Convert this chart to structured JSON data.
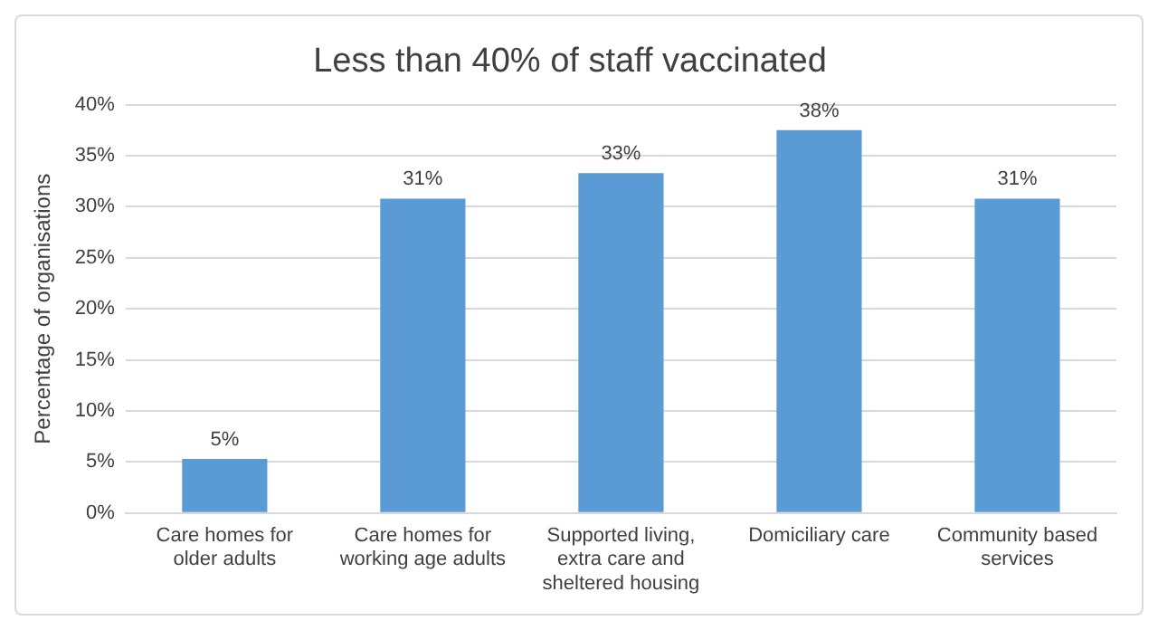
{
  "chart_data": {
    "type": "bar",
    "title": "Less than 40% of staff vaccinated",
    "ylabel": "Percentage of organisations",
    "categories": [
      "Care homes for older adults",
      "Care homes for working age adults",
      "Supported living, extra care and sheltered housing",
      "Domiciliary care",
      "Community based services"
    ],
    "values": [
      5.3,
      30.8,
      33.3,
      37.5,
      30.8
    ],
    "value_labels": [
      "5%",
      "31%",
      "33%",
      "38%",
      "31%"
    ],
    "color": "#5b9bd5",
    "ylim": [
      0,
      40
    ],
    "yticks": [
      {
        "value": 0,
        "label": "0%"
      },
      {
        "value": 5,
        "label": "5%"
      },
      {
        "value": 10,
        "label": "10%"
      },
      {
        "value": 15,
        "label": "15%"
      },
      {
        "value": 20,
        "label": "20%"
      },
      {
        "value": 25,
        "label": "25%"
      },
      {
        "value": 30,
        "label": "30%"
      },
      {
        "value": 35,
        "label": "35%"
      },
      {
        "value": 40,
        "label": "40%"
      }
    ],
    "grid": "y"
  }
}
